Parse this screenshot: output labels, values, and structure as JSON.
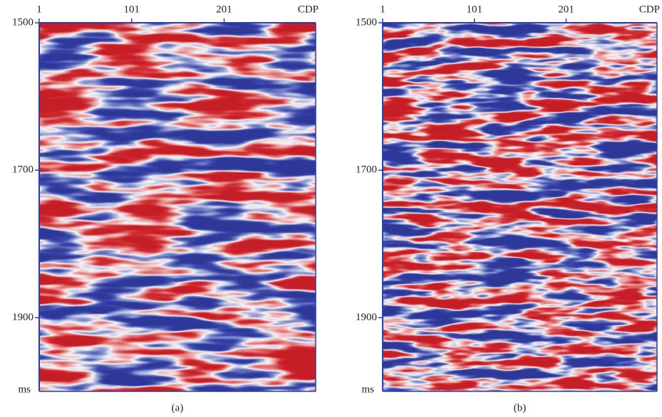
{
  "chart_data": [
    {
      "type": "seismic",
      "xlabel": "CDP",
      "ylabel": "ms",
      "caption": "(a)",
      "xlim": [
        1,
        300
      ],
      "xticks": [
        1,
        101,
        201
      ],
      "ylim": [
        1500,
        2000
      ],
      "yticks": [
        1500,
        1700,
        1900
      ]
    },
    {
      "type": "seismic",
      "xlabel": "CDP",
      "ylabel": "ms",
      "caption": "(b)",
      "xlim": [
        1,
        300
      ],
      "xticks": [
        1,
        101,
        201
      ],
      "ylim": [
        1500,
        2000
      ],
      "yticks": [
        1500,
        1700,
        1900
      ]
    }
  ]
}
